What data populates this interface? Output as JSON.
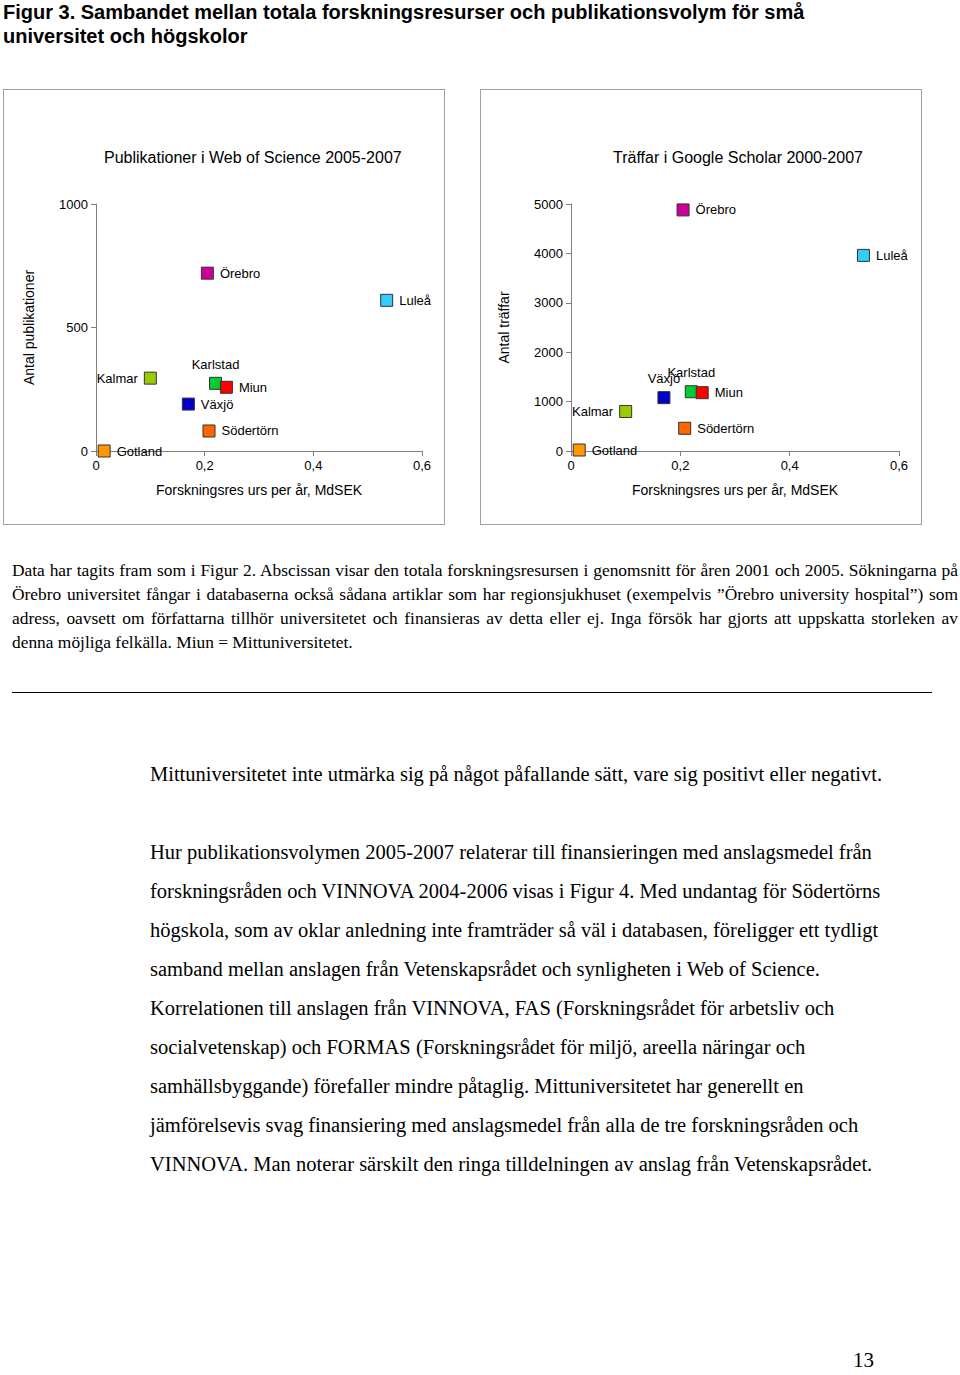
{
  "title": "Figur 3. Sambandet mellan totala forskningsresurser och publikationsvolym för små universitet och högskolor",
  "chart_data": [
    {
      "type": "scatter",
      "title": "Publikationer i Web of Science 2005-2007",
      "x_label": "Forskningsres urs per år, MdSEK",
      "y_label": "Antal publikationer",
      "xlim": [
        0,
        0.6
      ],
      "xticks": [
        0,
        {
          "value": 0.2,
          "label": "0,2"
        },
        {
          "value": 0.4,
          "label": "0,4"
        },
        {
          "value": 0.6,
          "label": "0,6"
        }
      ],
      "ylim": [
        0,
        1000
      ],
      "yticks": [
        0,
        500,
        1000
      ],
      "grid": false,
      "marker": "square",
      "series": [
        {
          "name": "Örebro",
          "color": "#cc0099",
          "x": [
            0.205
          ],
          "values": [
            720
          ]
        },
        {
          "name": "Luleå",
          "color": "#33ccff",
          "x": [
            0.535
          ],
          "values": [
            610
          ]
        },
        {
          "name": "Kalmar",
          "color": "#99cc00",
          "x": [
            0.1
          ],
          "values": [
            295
          ]
        },
        {
          "name": "Karlstad",
          "color": "#00cc33",
          "x": [
            0.22
          ],
          "values": [
            274
          ]
        },
        {
          "name": "Miun",
          "color": "#ff0000",
          "x": [
            0.24
          ],
          "values": [
            258
          ]
        },
        {
          "name": "Växjö",
          "color": "#0000cc",
          "x": [
            0.17
          ],
          "values": [
            190
          ]
        },
        {
          "name": "Södertörn",
          "color": "#ff6600",
          "x": [
            0.208
          ],
          "values": [
            81
          ]
        },
        {
          "name": "Gotland",
          "color": "#ff9900",
          "x": [
            0.015
          ],
          "values": [
            0
          ]
        }
      ]
    },
    {
      "type": "scatter",
      "title": "Träffar i Google Scholar 2000-2007",
      "x_label": "Forskningsres urs per år, MdSEK",
      "y_label": "Antal träffar",
      "xlim": [
        0,
        0.6
      ],
      "xticks": [
        0,
        {
          "value": 0.2,
          "label": "0,2"
        },
        {
          "value": 0.4,
          "label": "0,4"
        },
        {
          "value": 0.6,
          "label": "0,6"
        }
      ],
      "ylim": [
        0,
        5000
      ],
      "yticks": [
        0,
        1000,
        2000,
        3000,
        4000,
        5000
      ],
      "grid": false,
      "marker": "square",
      "series": [
        {
          "name": "Örebro",
          "color": "#cc0099",
          "x": [
            0.205
          ],
          "values": [
            4880
          ]
        },
        {
          "name": "Luleå",
          "color": "#33ccff",
          "x": [
            0.535
          ],
          "values": [
            3960
          ]
        },
        {
          "name": "Kalmar",
          "color": "#99cc00",
          "x": [
            0.1
          ],
          "values": [
            800
          ]
        },
        {
          "name": "Karlstad",
          "color": "#00cc33",
          "x": [
            0.22
          ],
          "values": [
            1200
          ]
        },
        {
          "name": "Miun",
          "color": "#ff0000",
          "x": [
            0.24
          ],
          "values": [
            1180
          ]
        },
        {
          "name": "Växjö",
          "color": "#0000cc",
          "x": [
            0.17
          ],
          "values": [
            1080
          ]
        },
        {
          "name": "Södertörn",
          "color": "#ff6600",
          "x": [
            0.208
          ],
          "values": [
            460
          ]
        },
        {
          "name": "Gotland",
          "color": "#ff9900",
          "x": [
            0.015
          ],
          "values": [
            20
          ]
        }
      ]
    }
  ],
  "caption": "Data har tagits fram som i Figur 2. Abscissan visar den totala forskningsresursen i genomsnitt för åren 2001 och 2005. Sökningarna på Örebro universitet fångar i databaserna också sådana artiklar som har regionsjukhuset (exempelvis ”Örebro university hospital”) som adress, oavsett om författarna tillhör universitetet och finansieras av detta eller ej. Inga försök har gjorts att uppskatta storleken av denna möjliga felkälla. Miun = Mittuniversitetet.",
  "paragraphs": [
    "Mittuniversitetet inte utmärka sig på något påfallande sätt, vare sig positivt eller negativt.",
    "Hur publikationsvolymen 2005-2007 relaterar till finansieringen med anslagsmedel från forskningsråden och VINNOVA 2004-2006 visas i Figur 4. Med undantag för Södertörns högskola, som av oklar anledning inte framträder så väl i databasen, föreligger ett tydligt samband mellan anslagen från Vetenskapsrådet och synligheten i Web of Science. Korrelationen till anslagen från VINNOVA, FAS (Forskningsrådet för arbetsliv och socialvetenskap) och FORMAS (Forskningsrådet för miljö, areella näringar och samhällsbyggande) förefaller mindre påtaglig. Mittuniversitetet har generellt en jämförelsevis svag finansiering med anslagsmedel från alla de tre forskningsråden och VINNOVA. Man noterar särskilt den ringa tilldelningen av anslag från Vetenskapsrådet."
  ],
  "page_number": 13
}
